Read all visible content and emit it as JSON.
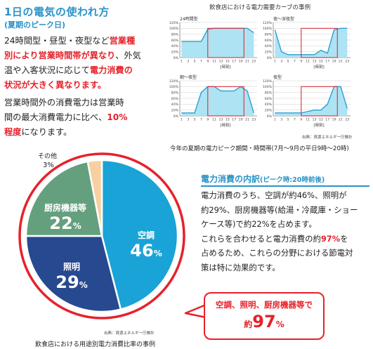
{
  "left": {
    "title": "1日の電気の使われ方",
    "subtitle": "(夏期のピーク日)",
    "para1": {
      "l1a": "24時間型・昼型・夜型など",
      "l1b": "営業種",
      "l2a": "別により営業時間帯が異なり",
      "l2b": "、外気",
      "l3": "温や入客状況に応じて",
      "l3b": "電力消費の",
      "l4": "状況が大きく異なります。"
    },
    "para2": {
      "l1": "営業時間外の消費電力は営業時",
      "l2": "間の最大消費電力に比べ、",
      "l2b": "10%",
      "l3a": "程度",
      "l3b": "になります。"
    }
  },
  "charts_heading": "飲食店における電力需要カーブの事例",
  "charts_source": "出典：資源エネルギー庁推計",
  "peak_period_note": "今年の夏期の電力ピーク期間・時間帯(7月～9月の平日9時～20時)",
  "mini_axis": {
    "y_ticks": [
      "120%",
      "100%",
      "80%",
      "60%",
      "40%",
      "20%",
      "0%"
    ],
    "x_ticks": [
      "1",
      "3",
      "5",
      "7",
      "9",
      "11",
      "13",
      "15",
      "17",
      "19",
      "21",
      "23"
    ],
    "x_label": "[時刻]"
  },
  "chart_data": [
    {
      "type": "area",
      "title": "24時間型",
      "xlabel": "[時刻]",
      "ylim": [
        0,
        120
      ],
      "peak_hours": [
        9,
        20
      ],
      "x": [
        1,
        3,
        5,
        7,
        9,
        11,
        13,
        15,
        17,
        19,
        21,
        23
      ],
      "values": [
        55,
        55,
        55,
        55,
        97,
        100,
        100,
        100,
        100,
        100,
        100,
        85
      ]
    },
    {
      "type": "area",
      "title": "夜～深夜型",
      "xlabel": "[時刻]",
      "ylim": [
        0,
        120
      ],
      "peak_hours": [
        9,
        20
      ],
      "x": [
        1,
        3,
        5,
        7,
        9,
        11,
        13,
        15,
        17,
        19,
        21,
        23
      ],
      "values": [
        95,
        20,
        10,
        10,
        10,
        10,
        10,
        25,
        15,
        95,
        100,
        100
      ]
    },
    {
      "type": "area",
      "title": "朝～夜型",
      "xlabel": "[時刻]",
      "ylim": [
        0,
        120
      ],
      "peak_hours": [
        9,
        20
      ],
      "x": [
        1,
        3,
        5,
        7,
        9,
        11,
        13,
        15,
        17,
        19,
        21,
        23
      ],
      "values": [
        10,
        10,
        10,
        80,
        100,
        100,
        85,
        85,
        85,
        100,
        85,
        10
      ]
    },
    {
      "type": "area",
      "title": "夜型",
      "xlabel": "[時刻]",
      "ylim": [
        0,
        120
      ],
      "peak_hours": [
        9,
        20
      ],
      "x": [
        1,
        3,
        5,
        7,
        9,
        11,
        13,
        15,
        17,
        19,
        21,
        23
      ],
      "values": [
        10,
        10,
        10,
        10,
        10,
        15,
        20,
        20,
        40,
        100,
        100,
        25
      ]
    },
    {
      "type": "pie",
      "caption": "飲食店における用途別電力消費比率の事例",
      "source": "出典：資源エネルギー庁推計",
      "categories": [
        "空調",
        "照明",
        "厨房機器等",
        "その他"
      ],
      "values": [
        46,
        29,
        22,
        3
      ],
      "unit": "%",
      "colors": [
        "#1aa3d6",
        "#27498f",
        "#64a07e",
        "#f8cfa0"
      ]
    }
  ],
  "breakdown": {
    "title": "電力消費の内訳",
    "title_sub": "(ピーク時:20時前後)",
    "l1": "電力消費のうち、空調が約46%、照明が",
    "l2": "約29%、厨房機器等(給湯・冷蔵庫・ショー",
    "l3": "ケース等)で約22%を占めます。",
    "l4a": "これらを合わせると電力消費の約",
    "l4b": "97%",
    "l4c": "を",
    "l5": "占めるため、これらの分野における節電対",
    "l6": "策は特に効果的です。"
  },
  "callout": {
    "line1": "空調、照明、厨房機器等で",
    "pre": "約",
    "big": "97",
    "pct": "%"
  },
  "colors": {
    "accent_blue": "#2a93c7",
    "red": "#e6222b",
    "curve_fill": "#aee3f3",
    "curve_line": "#2aa0d4",
    "peak_line": "#d92f3a"
  }
}
